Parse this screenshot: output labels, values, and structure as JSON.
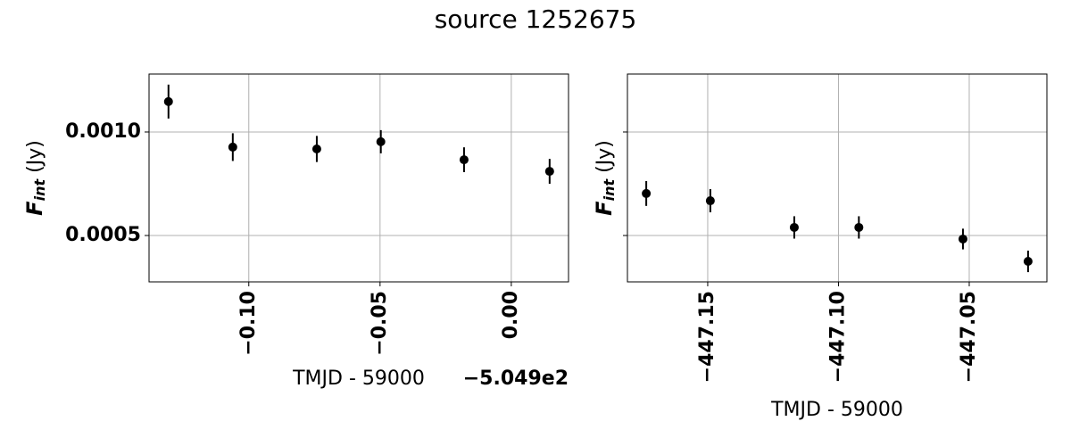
{
  "title": "source 1252675",
  "chart_data": [
    {
      "type": "scatter",
      "xlabel": "TMJD - 59000",
      "x_offset_label": "−5.049e2",
      "ylabel_symbol": "F",
      "ylabel_subscript": "int",
      "ylabel_unit": "(Jy)",
      "xlim": [
        -0.138,
        0.0218
      ],
      "ylim": [
        0.000276,
        0.00128
      ],
      "xticks": [
        {
          "value": -0.1,
          "label": "−0.10"
        },
        {
          "value": -0.05,
          "label": "−0.05"
        },
        {
          "value": 0,
          "label": "0.00"
        }
      ],
      "yticks": [
        {
          "value": 0.0005,
          "label": "0.0005"
        },
        {
          "value": 0.001,
          "label": "0.0010"
        }
      ],
      "grid": true,
      "color": "#000000",
      "x": [
        -0.1306,
        -0.1061,
        -0.0741,
        -0.0497,
        -0.018,
        0.0146
      ],
      "values": [
        0.001147,
        0.000927,
        0.000918,
        0.000953,
        0.000866,
        0.00081
      ],
      "errors": [
        8.2e-05,
        6.7e-05,
        6.3e-05,
        5.6e-05,
        6e-05,
        6e-05
      ]
    },
    {
      "type": "scatter",
      "xlabel": "TMJD - 59000",
      "ylabel_symbol": "F",
      "ylabel_subscript": "int",
      "ylabel_unit": "(Jy)",
      "xlim": [
        -447.1807,
        -447.0203
      ],
      "ylim": [
        0.000276,
        0.00128
      ],
      "xticks": [
        {
          "value": -447.15,
          "label": "−447.15"
        },
        {
          "value": -447.1,
          "label": "−447.10"
        },
        {
          "value": -447.05,
          "label": "−447.05"
        }
      ],
      "yticks": [
        0.0005,
        0.001
      ],
      "grid": true,
      "color": "#000000",
      "x": [
        -447.1735,
        -447.149,
        -447.1169,
        -447.0922,
        -447.0524,
        -447.0275
      ],
      "values": [
        0.000703,
        0.000668,
        0.000539,
        0.000539,
        0.000483,
        0.000375
      ],
      "errors": [
        6e-05,
        5.6e-05,
        5.4e-05,
        5.4e-05,
        5e-05,
        5.2e-05
      ]
    }
  ]
}
